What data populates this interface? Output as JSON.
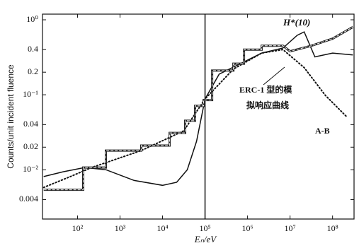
{
  "chart_data": {
    "type": "line",
    "x_label": "Eₙ/eV",
    "y_label": "Counts/unit incident fluence",
    "x_log": true,
    "y_log": true,
    "xlim": [
      15,
      320000000
    ],
    "ylim": [
      0.0022,
      1.19
    ],
    "xticks": [
      {
        "value": 100,
        "label": "10²"
      },
      {
        "value": 1000,
        "label": "10³"
      },
      {
        "value": 10000,
        "label": "10⁴"
      },
      {
        "value": 100000,
        "label": "10⁵"
      },
      {
        "value": 1000000,
        "label": "10⁶"
      },
      {
        "value": 10000000,
        "label": "10⁷"
      },
      {
        "value": 100000000,
        "label": "10⁸"
      }
    ],
    "yticks": [
      {
        "value": 1,
        "label": "10⁰"
      },
      0.4,
      0.2,
      {
        "value": 0.1,
        "label": "10⁻¹"
      },
      0.04,
      0.02,
      {
        "value": 0.01,
        "label": "10⁻²"
      },
      0.004
    ],
    "vline": 100000,
    "annotations": [
      "ERC-1 型的模",
      "拟响应曲线"
    ],
    "series": [
      {
        "name": "H*(10)",
        "color": "#111111",
        "style": "solid",
        "x": [
          16,
          46,
          147,
          464,
          2150,
          10000,
          21500,
          38300,
          63100,
          100000,
          215000,
          681000,
          2150000,
          6800000,
          14700000,
          21500000,
          38300000,
          100000000,
          300000000
        ],
        "values": [
          0.0081,
          0.0094,
          0.0107,
          0.01,
          0.0072,
          0.0062,
          0.0068,
          0.01,
          0.024,
          0.088,
          0.188,
          0.26,
          0.36,
          0.42,
          0.62,
          0.69,
          0.32,
          0.36,
          0.34
        ]
      },
      {
        "name": "A-B",
        "color": "#111111",
        "style": "dotted",
        "x": [
          16,
          68,
          215,
          3162,
          31600,
          100000,
          464000,
          2150000,
          6800000,
          21500000,
          68000000,
          215000000
        ],
        "values": [
          0.0058,
          0.0081,
          0.0107,
          0.018,
          0.033,
          0.088,
          0.22,
          0.36,
          0.4,
          0.23,
          0.098,
          0.051
        ]
      },
      {
        "color": "#222222",
        "style": "step",
        "x": [
          16,
          136,
          136,
          464,
          464,
          3162,
          3162,
          14700,
          14700,
          34100,
          34100,
          58400,
          58400,
          92600,
          92600,
          146800,
          146800,
          464000,
          464000,
          826000,
          826000,
          2150000,
          2150000,
          6800000,
          10000000,
          31600000,
          100000000,
          300000000
        ],
        "values": [
          0.0054,
          0.0054,
          0.0107,
          0.0107,
          0.018,
          0.018,
          0.021,
          0.021,
          0.031,
          0.031,
          0.045,
          0.045,
          0.071,
          0.071,
          0.085,
          0.085,
          0.21,
          0.21,
          0.26,
          0.26,
          0.4,
          0.4,
          0.45,
          0.45,
          0.38,
          0.45,
          0.56,
          0.8
        ]
      }
    ]
  }
}
